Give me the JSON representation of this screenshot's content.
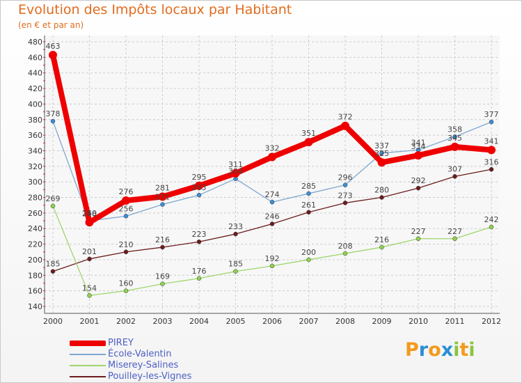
{
  "title": "Evolution des Impôts locaux par Habitant",
  "subtitle": "(en € et par an)",
  "logo": {
    "text": "Proxiti",
    "letters": [
      "P",
      "r",
      "o",
      "x",
      "i",
      "t",
      "i"
    ],
    "colors": [
      "#f39a1d",
      "#2a8fd4",
      "#f39a1d",
      "#2a8fd4",
      "#8bc53f",
      "#f39a1d",
      "#8bc53f"
    ]
  },
  "chart_data": {
    "type": "line",
    "x": [
      "2000",
      "2001",
      "2002",
      "2003",
      "2004",
      "2005",
      "2006",
      "2007",
      "2008",
      "2009",
      "2010",
      "2011",
      "2012"
    ],
    "ylim": [
      140,
      480
    ],
    "yticks": [
      140,
      160,
      180,
      200,
      220,
      240,
      260,
      280,
      300,
      320,
      340,
      360,
      380,
      400,
      420,
      440,
      460,
      480
    ],
    "grid": true,
    "series": [
      {
        "name": "Pouilley-les-Vignes",
        "color": "#6b1c1c",
        "marker": "#6b1c1c",
        "weight": "thin",
        "values": [
          185,
          201,
          210,
          216,
          223,
          233,
          246,
          261,
          273,
          280,
          292,
          307,
          316
        ]
      },
      {
        "name": "Miserey-Salines",
        "color": "#9ed66b",
        "marker": "#8fd14f",
        "weight": "thin",
        "values": [
          269,
          154,
          160,
          169,
          176,
          185,
          192,
          200,
          208,
          216,
          227,
          227,
          242
        ]
      },
      {
        "name": "École-Valentin",
        "color": "#7fa8d0",
        "marker": "#3d8ed6",
        "weight": "thin",
        "values": [
          378,
          250,
          256,
          271,
          283,
          304,
          274,
          285,
          296,
          337,
          341,
          358,
          377
        ]
      },
      {
        "name": "PIREY",
        "color": "#ee0000",
        "marker": "#ee0000",
        "weight": "thick",
        "values": [
          463,
          248,
          276,
          281,
          295,
          311,
          332,
          351,
          372,
          325,
          334,
          345,
          341
        ]
      }
    ],
    "legend": [
      "PIREY",
      "École-Valentin",
      "Miserey-Salines",
      "Pouilley-les-Vignes"
    ],
    "legend_position": "bottom-left"
  }
}
